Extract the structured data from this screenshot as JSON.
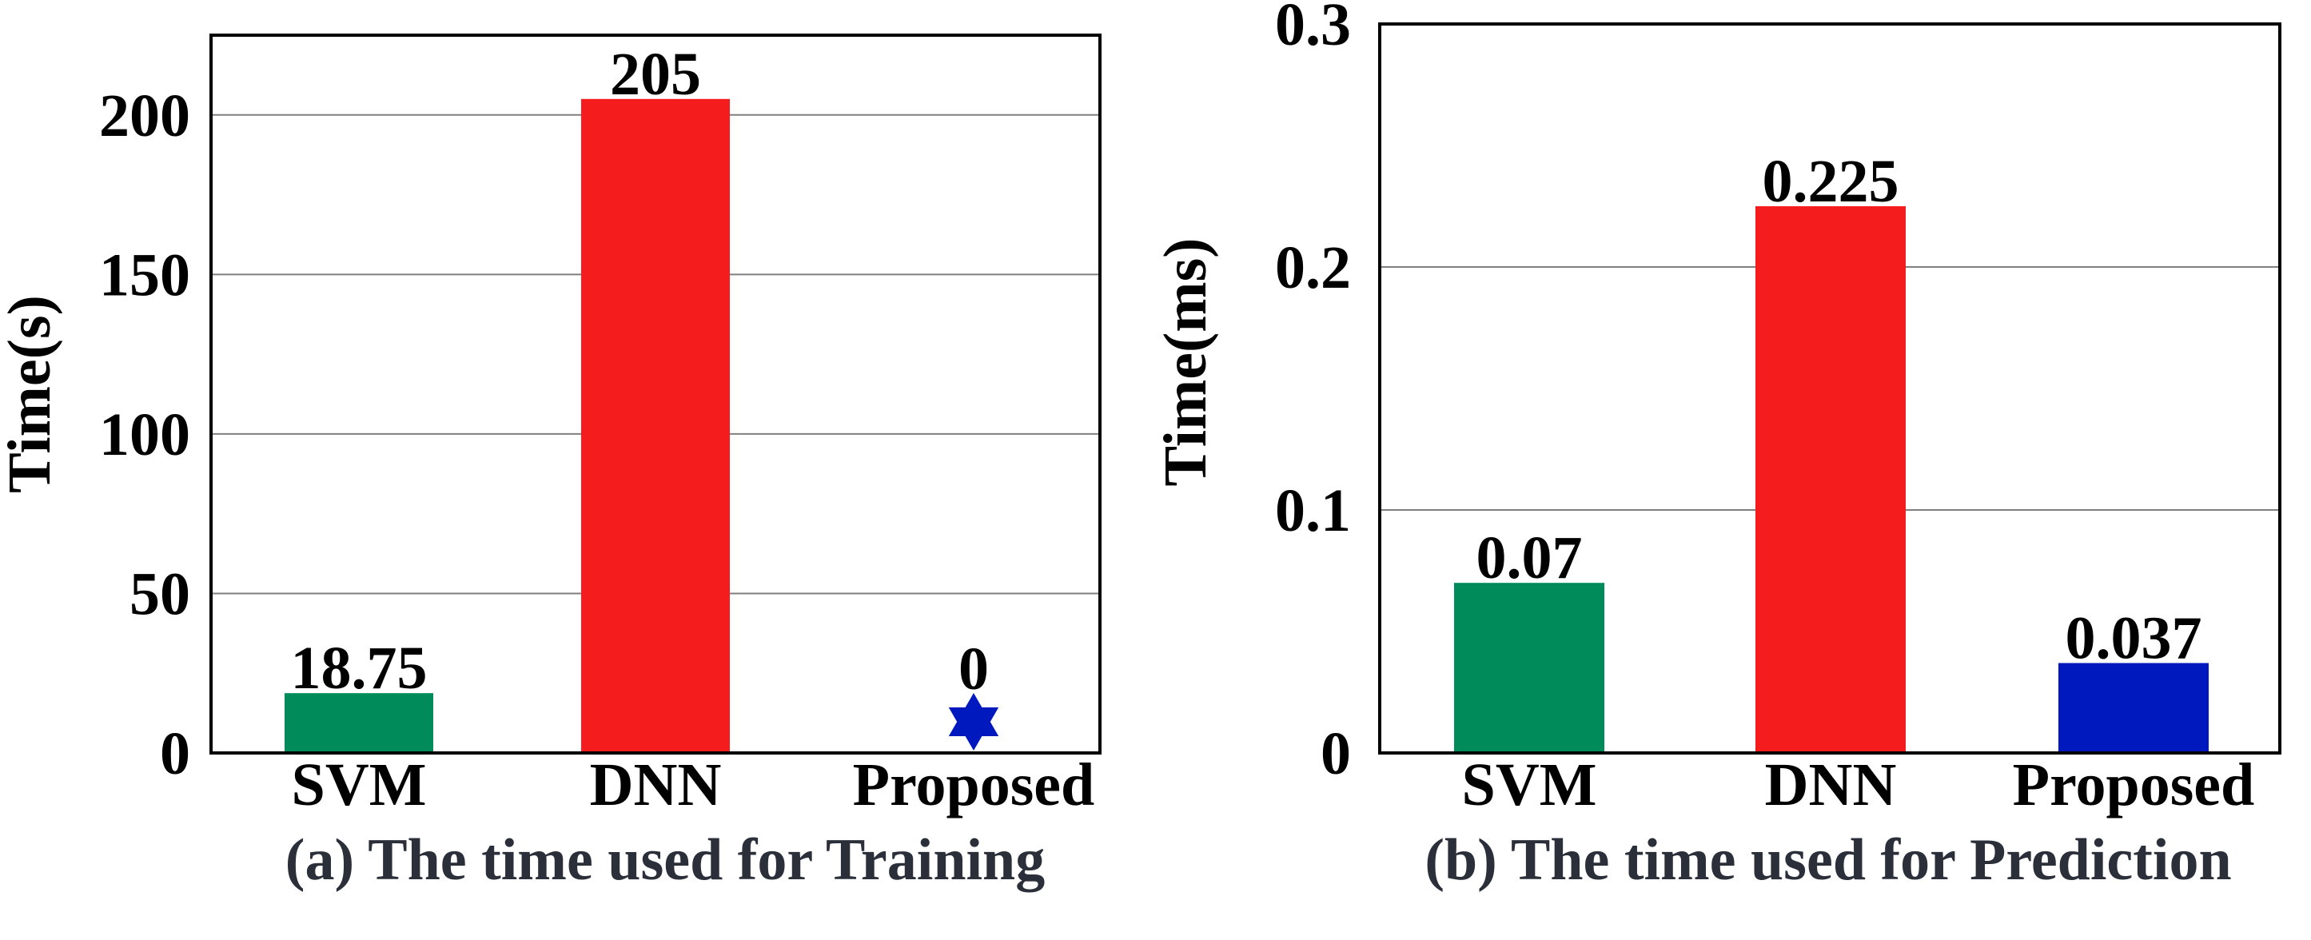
{
  "colors": {
    "svm": "#008B5A",
    "dnn": "#F41C1C",
    "proposed": "#0019BF",
    "grid": "#7f7f7f",
    "text": "#000000",
    "caption": "#2a2f3a"
  },
  "chart_data": [
    {
      "type": "bar",
      "caption": "(a) The time used for Training",
      "ylabel": "Time(s)",
      "xlabel": "",
      "categories": [
        "SVM",
        "DNN",
        "Proposed"
      ],
      "values": [
        18.75,
        205,
        0
      ],
      "value_labels": [
        "18.75",
        "205",
        "0"
      ],
      "bar_colors": [
        "#008B5A",
        "#F41C1C",
        "#0019BF"
      ],
      "zero_value_marker": "star-icon",
      "ylim": [
        0,
        225
      ],
      "yticks": [
        0,
        50,
        100,
        150,
        200
      ],
      "ytick_labels": [
        "0",
        "50",
        "100",
        "150",
        "200"
      ],
      "grid": true
    },
    {
      "type": "bar",
      "caption": "(b) The time used for Prediction",
      "ylabel": "Time(ms)",
      "xlabel": "",
      "categories": [
        "SVM",
        "DNN",
        "Proposed"
      ],
      "values": [
        0.07,
        0.225,
        0.037
      ],
      "value_labels": [
        "0.07",
        "0.225",
        "0.037"
      ],
      "bar_colors": [
        "#008B5A",
        "#F41C1C",
        "#0019BF"
      ],
      "ylim": [
        0,
        0.3
      ],
      "yticks": [
        0,
        0.1,
        0.2,
        0.3
      ],
      "ytick_labels": [
        "0",
        "0.1",
        "0.2",
        "0.3"
      ],
      "grid": true
    }
  ]
}
